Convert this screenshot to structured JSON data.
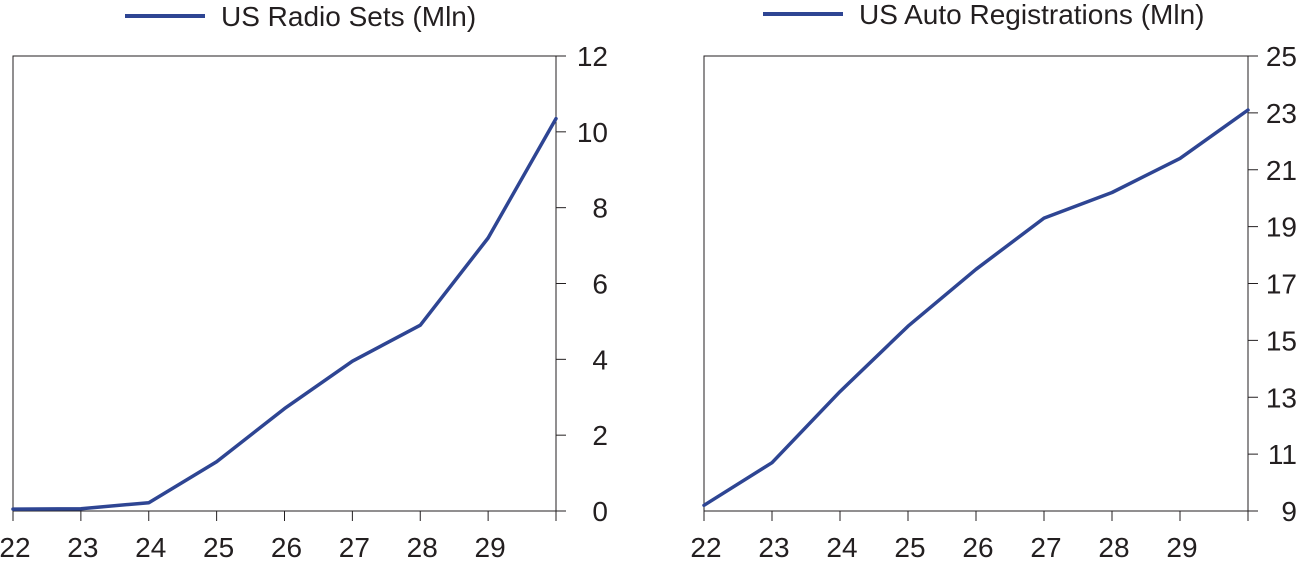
{
  "chart_data": [
    {
      "type": "line",
      "legend": "US Radio Sets (Mln)",
      "color": "#2e4593",
      "x": [
        "22",
        "23",
        "24",
        "25",
        "26",
        "27",
        "28",
        "29",
        "30"
      ],
      "x_tick_labels": [
        "22",
        "23",
        "24",
        "25",
        "26",
        "27",
        "28",
        "29"
      ],
      "series": [
        {
          "name": "US Radio Sets (Mln)",
          "values": [
            0.05,
            0.06,
            0.22,
            1.3,
            2.7,
            3.95,
            4.9,
            7.2,
            10.35
          ]
        }
      ],
      "ylim": [
        0,
        12
      ],
      "y_ticks": [
        0,
        2,
        4,
        6,
        8,
        10,
        12
      ],
      "y_axis_side": "right",
      "grid": false,
      "legend_position": "top"
    },
    {
      "type": "line",
      "legend": "US Auto Registrations (Mln)",
      "color": "#2e4593",
      "x": [
        "22",
        "23",
        "24",
        "25",
        "26",
        "27",
        "28",
        "29",
        "30"
      ],
      "x_tick_labels": [
        "22",
        "23",
        "24",
        "25",
        "26",
        "27",
        "28",
        "29"
      ],
      "series": [
        {
          "name": "US Auto Registrations (Mln)",
          "values": [
            9.2,
            10.7,
            13.2,
            15.5,
            17.5,
            19.3,
            20.2,
            21.4,
            23.1
          ]
        }
      ],
      "ylim": [
        9,
        25
      ],
      "y_ticks": [
        9,
        11,
        13,
        15,
        17,
        19,
        21,
        23,
        25
      ],
      "y_axis_side": "right",
      "grid": false,
      "legend_position": "top"
    }
  ]
}
